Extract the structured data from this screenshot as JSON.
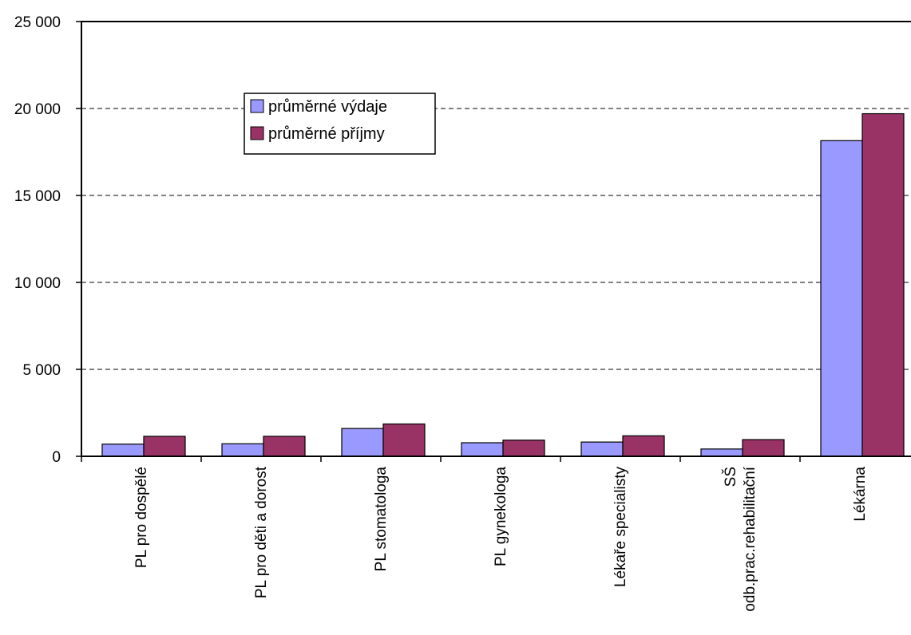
{
  "chart_data": {
    "type": "bar",
    "title": "",
    "xlabel": "",
    "ylabel": "",
    "ylim": [
      0,
      25000
    ],
    "yticks": [
      0,
      5000,
      10000,
      15000,
      20000,
      25000
    ],
    "ytick_labels": [
      "0",
      "5 000",
      "10 000",
      "15 000",
      "20 000",
      "25 000"
    ],
    "grid": "horizontal-dashed",
    "legend_position": "upper-left-inside",
    "categories": [
      [
        "PL pro dospělé"
      ],
      [
        "PL pro děti a dorost"
      ],
      [
        "PL stomatologa"
      ],
      [
        "PL gynekologa"
      ],
      [
        "Lékaře specialisty"
      ],
      [
        "SŠ",
        "odb.prac.rehabilitační"
      ],
      [
        "Lékárna"
      ]
    ],
    "series": [
      {
        "name": "průměrné výdaje",
        "color": "#9999ff",
        "values": [
          700,
          720,
          1600,
          780,
          820,
          420,
          18150
        ]
      },
      {
        "name": "průměrné příjmy",
        "color": "#993366",
        "values": [
          1150,
          1150,
          1860,
          930,
          1180,
          960,
          19700
        ]
      }
    ]
  }
}
